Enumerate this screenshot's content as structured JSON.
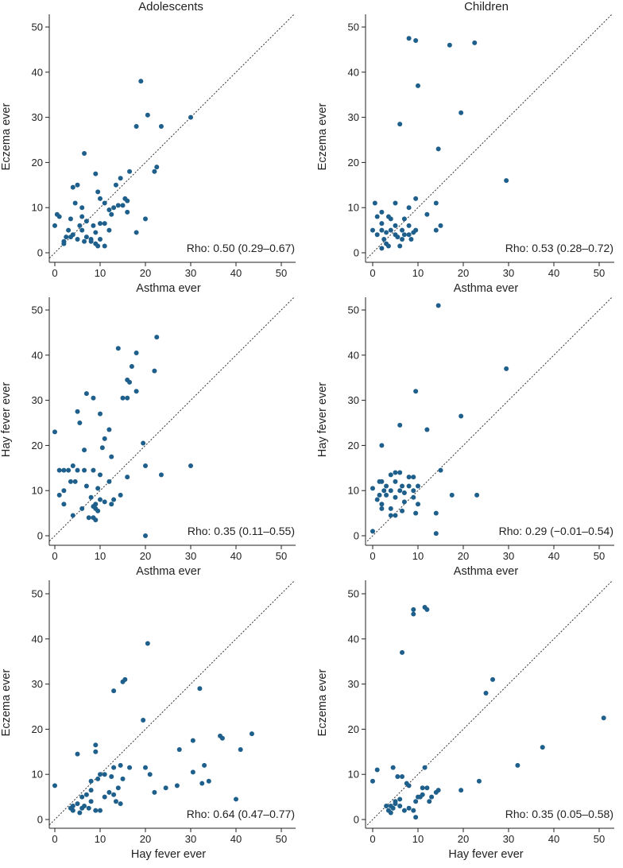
{
  "figure": {
    "colors": {
      "point": "#1f5f8b",
      "axis": "#222222",
      "diagonal": "#333333"
    },
    "column_titles": [
      "Adolescents",
      "Children"
    ]
  },
  "chart_data": [
    {
      "type": "scatter",
      "id": "adolescents-asthma-eczema",
      "column_title": "Adolescents",
      "xlabel": "Asthma ever",
      "ylabel": "Eczema ever",
      "xlim": [
        0,
        50
      ],
      "ylim": [
        0,
        50
      ],
      "xticks": [
        0,
        10,
        20,
        30,
        40,
        50
      ],
      "yticks": [
        0,
        10,
        20,
        30,
        40,
        50
      ],
      "annotation": "Rho: 0.50 (0.29–0.67)",
      "reference_line": "y = x (dotted)",
      "points": [
        [
          19,
          38
        ],
        [
          20.5,
          30.5
        ],
        [
          30,
          30
        ],
        [
          18,
          28
        ],
        [
          23.5,
          28
        ],
        [
          6.5,
          22
        ],
        [
          22,
          18
        ],
        [
          22.5,
          19
        ],
        [
          16.5,
          18
        ],
        [
          9,
          17.5
        ],
        [
          14.5,
          16.5
        ],
        [
          5,
          15
        ],
        [
          13.5,
          15
        ],
        [
          4,
          14.5
        ],
        [
          9.5,
          13.5
        ],
        [
          10,
          12
        ],
        [
          15.5,
          12
        ],
        [
          16,
          11.5
        ],
        [
          11,
          11
        ],
        [
          4.5,
          11
        ],
        [
          6,
          10
        ],
        [
          14,
          10.5
        ],
        [
          15,
          10.5
        ],
        [
          13,
          10
        ],
        [
          16,
          9
        ],
        [
          12,
          9.5
        ],
        [
          0.5,
          8.5
        ],
        [
          3.5,
          7.5
        ],
        [
          1,
          8
        ],
        [
          6,
          8
        ],
        [
          12.5,
          8.5
        ],
        [
          20,
          7.5
        ],
        [
          7,
          7
        ],
        [
          10,
          6.5
        ],
        [
          11,
          6.5
        ],
        [
          5.5,
          6
        ],
        [
          8.5,
          6
        ],
        [
          0,
          6
        ],
        [
          3,
          5
        ],
        [
          6,
          5
        ],
        [
          12,
          5
        ],
        [
          4,
          4
        ],
        [
          9,
          4.5
        ],
        [
          18,
          4.5
        ],
        [
          2.5,
          3.5
        ],
        [
          3.5,
          3.5
        ],
        [
          5,
          3
        ],
        [
          7,
          3.5
        ],
        [
          8,
          3
        ],
        [
          10,
          3
        ],
        [
          6.5,
          2.5
        ],
        [
          8,
          2.5
        ],
        [
          9,
          2
        ],
        [
          9.5,
          1.5
        ],
        [
          11,
          1.5
        ],
        [
          2,
          2
        ],
        [
          2,
          2.5
        ]
      ]
    },
    {
      "type": "scatter",
      "id": "children-asthma-eczema",
      "column_title": "Children",
      "xlabel": "Asthma ever",
      "ylabel": "Eczema ever",
      "xlim": [
        0,
        50
      ],
      "ylim": [
        0,
        50
      ],
      "xticks": [
        0,
        10,
        20,
        30,
        40,
        50
      ],
      "yticks": [
        0,
        10,
        20,
        30,
        40,
        50
      ],
      "annotation": "Rho: 0.53 (0.28–0.72)",
      "reference_line": "y = x (dotted)",
      "points": [
        [
          8,
          47.5
        ],
        [
          9.5,
          47
        ],
        [
          17,
          46
        ],
        [
          22.5,
          46.5
        ],
        [
          10,
          37
        ],
        [
          19.5,
          31
        ],
        [
          6,
          28.5
        ],
        [
          14.5,
          23
        ],
        [
          29.5,
          16
        ],
        [
          9.5,
          12
        ],
        [
          0.5,
          11
        ],
        [
          5,
          11
        ],
        [
          14,
          11
        ],
        [
          8,
          10
        ],
        [
          2,
          9
        ],
        [
          1,
          8
        ],
        [
          3.5,
          8
        ],
        [
          4,
          7.5
        ],
        [
          7,
          7.5
        ],
        [
          12,
          8.5
        ],
        [
          15,
          6
        ],
        [
          2,
          6.5
        ],
        [
          5,
          6
        ],
        [
          8,
          6
        ],
        [
          0,
          5
        ],
        [
          2,
          5
        ],
        [
          4,
          5
        ],
        [
          6.5,
          5
        ],
        [
          9.5,
          5
        ],
        [
          14,
          5
        ],
        [
          1,
          4
        ],
        [
          3,
          4.5
        ],
        [
          5,
          4
        ],
        [
          7,
          4
        ],
        [
          8,
          4
        ],
        [
          9,
          4.5
        ],
        [
          5.5,
          3.5
        ],
        [
          6.5,
          3
        ],
        [
          8.5,
          3
        ],
        [
          2.5,
          3
        ],
        [
          3,
          2
        ],
        [
          6,
          1.5
        ],
        [
          2,
          1
        ],
        [
          3.5,
          1.5
        ]
      ]
    },
    {
      "type": "scatter",
      "id": "adolescents-asthma-hayfever",
      "xlabel": "Asthma ever",
      "ylabel": "Hay fever ever",
      "xlim": [
        0,
        50
      ],
      "ylim": [
        0,
        50
      ],
      "xticks": [
        0,
        10,
        20,
        30,
        40,
        50
      ],
      "yticks": [
        0,
        10,
        20,
        30,
        40,
        50
      ],
      "annotation": "Rho: 0.35 (0.11–0.55)",
      "reference_line": "y = x (dotted)",
      "points": [
        [
          22.5,
          44
        ],
        [
          14,
          41.5
        ],
        [
          18,
          40.5
        ],
        [
          17,
          37.5
        ],
        [
          22,
          36.5
        ],
        [
          16,
          34.5
        ],
        [
          16.5,
          34
        ],
        [
          18,
          32
        ],
        [
          7,
          31.5
        ],
        [
          8.5,
          30.5
        ],
        [
          15,
          30.5
        ],
        [
          16,
          30.5
        ],
        [
          5,
          27.5
        ],
        [
          10,
          27
        ],
        [
          5.5,
          25
        ],
        [
          12,
          23.5
        ],
        [
          0,
          23
        ],
        [
          11,
          21.5
        ],
        [
          19.5,
          20.5
        ],
        [
          10.5,
          19.5
        ],
        [
          6.5,
          19
        ],
        [
          12.5,
          17.5
        ],
        [
          20,
          15.5
        ],
        [
          30,
          15.5
        ],
        [
          4,
          15.5
        ],
        [
          1,
          14.5
        ],
        [
          2,
          14.5
        ],
        [
          3,
          14.5
        ],
        [
          5,
          14.5
        ],
        [
          6.5,
          14.5
        ],
        [
          8.5,
          14.5
        ],
        [
          10,
          13.5
        ],
        [
          23.5,
          13.5
        ],
        [
          16,
          13
        ],
        [
          3.5,
          12
        ],
        [
          4.5,
          12
        ],
        [
          12,
          12
        ],
        [
          7,
          11
        ],
        [
          9.5,
          10.5
        ],
        [
          2,
          10
        ],
        [
          1,
          9
        ],
        [
          14.5,
          9
        ],
        [
          8,
          8.5
        ],
        [
          10,
          8
        ],
        [
          13,
          8
        ],
        [
          2,
          7
        ],
        [
          9,
          7
        ],
        [
          11,
          7.5
        ],
        [
          8.5,
          6.5
        ],
        [
          6,
          6
        ],
        [
          9,
          6
        ],
        [
          9.5,
          5.5
        ],
        [
          12.5,
          7
        ],
        [
          4,
          4.5
        ],
        [
          7.5,
          4
        ],
        [
          8.5,
          4
        ],
        [
          9,
          3.5
        ],
        [
          20,
          0
        ]
      ]
    },
    {
      "type": "scatter",
      "id": "children-asthma-hayfever",
      "xlabel": "Asthma ever",
      "ylabel": "Hay fever ever",
      "xlim": [
        0,
        50
      ],
      "ylim": [
        0,
        50
      ],
      "xticks": [
        0,
        10,
        20,
        30,
        40,
        50
      ],
      "yticks": [
        0,
        10,
        20,
        30,
        40,
        50
      ],
      "annotation": "Rho: 0.29 (−0.01–0.54)",
      "reference_line": "y = x (dotted)",
      "points": [
        [
          14.5,
          51
        ],
        [
          29.5,
          37
        ],
        [
          9.5,
          32
        ],
        [
          19.5,
          26.5
        ],
        [
          6,
          24.5
        ],
        [
          12,
          23.5
        ],
        [
          2,
          20
        ],
        [
          15,
          14.5
        ],
        [
          5,
          14
        ],
        [
          6,
          14
        ],
        [
          4,
          13.5
        ],
        [
          8,
          13
        ],
        [
          9,
          13
        ],
        [
          2,
          12
        ],
        [
          5,
          12
        ],
        [
          1.5,
          12
        ],
        [
          3,
          11
        ],
        [
          6.5,
          11
        ],
        [
          10,
          11
        ],
        [
          8,
          11
        ],
        [
          0,
          10.5
        ],
        [
          2.5,
          10
        ],
        [
          4,
          10
        ],
        [
          6,
          10
        ],
        [
          9,
          10
        ],
        [
          1.5,
          9
        ],
        [
          3,
          9
        ],
        [
          7,
          9.5
        ],
        [
          17.5,
          9
        ],
        [
          23,
          9
        ],
        [
          1,
          8
        ],
        [
          5,
          8.5
        ],
        [
          9,
          8.5
        ],
        [
          2,
          7
        ],
        [
          7,
          7.5
        ],
        [
          10,
          7
        ],
        [
          2,
          6
        ],
        [
          4,
          6
        ],
        [
          6.5,
          5.5
        ],
        [
          4,
          4.5
        ],
        [
          5,
          4.5
        ],
        [
          9.5,
          5
        ],
        [
          14,
          5
        ],
        [
          0,
          1
        ],
        [
          14,
          0.5
        ]
      ]
    },
    {
      "type": "scatter",
      "id": "adolescents-hayfever-eczema",
      "xlabel": "Hay fever ever",
      "ylabel": "Eczema ever",
      "xlim": [
        0,
        50
      ],
      "ylim": [
        0,
        50
      ],
      "xticks": [
        0,
        10,
        20,
        30,
        40,
        50
      ],
      "yticks": [
        0,
        10,
        20,
        30,
        40,
        50
      ],
      "annotation": "Rho: 0.64 (0.47–0.77)",
      "reference_line": "y = x (dotted)",
      "points": [
        [
          20.5,
          39
        ],
        [
          15.5,
          31
        ],
        [
          15,
          30.5
        ],
        [
          32,
          29
        ],
        [
          13,
          28.5
        ],
        [
          19.5,
          22
        ],
        [
          30.5,
          17.5
        ],
        [
          36.5,
          18.5
        ],
        [
          37,
          18
        ],
        [
          43.5,
          19
        ],
        [
          9,
          16.5
        ],
        [
          9,
          15
        ],
        [
          5,
          14.5
        ],
        [
          27.5,
          15.5
        ],
        [
          41,
          15.5
        ],
        [
          16.5,
          11.5
        ],
        [
          20,
          11.5
        ],
        [
          14.5,
          12
        ],
        [
          13,
          11.5
        ],
        [
          33,
          12
        ],
        [
          21,
          10
        ],
        [
          10,
          10
        ],
        [
          11,
          10
        ],
        [
          12.5,
          9.5
        ],
        [
          30.5,
          10.5
        ],
        [
          9.5,
          9
        ],
        [
          15,
          9
        ],
        [
          32.5,
          8
        ],
        [
          34,
          8.5
        ],
        [
          8,
          8.5
        ],
        [
          27,
          7.5
        ],
        [
          24.5,
          7
        ],
        [
          22,
          6
        ],
        [
          14,
          7
        ],
        [
          12,
          6
        ],
        [
          13,
          5.5
        ],
        [
          7,
          5.5
        ],
        [
          8,
          6.5
        ],
        [
          0,
          7.5
        ],
        [
          11,
          5
        ],
        [
          6,
          5
        ],
        [
          4,
          3
        ],
        [
          5,
          3.5
        ],
        [
          6.5,
          3
        ],
        [
          7.5,
          2.5
        ],
        [
          9,
          2
        ],
        [
          4,
          2
        ],
        [
          5.5,
          1.5
        ],
        [
          6,
          2.5
        ],
        [
          10,
          2
        ],
        [
          14.5,
          3.5
        ],
        [
          13.5,
          4
        ],
        [
          3.5,
          2.5
        ],
        [
          8,
          4
        ],
        [
          40,
          4.5
        ]
      ]
    },
    {
      "type": "scatter",
      "id": "children-hayfever-eczema",
      "xlabel": "Hay fever ever",
      "ylabel": "Eczema ever",
      "xlim": [
        0,
        50
      ],
      "ylim": [
        0,
        50
      ],
      "xticks": [
        0,
        10,
        20,
        30,
        40,
        50
      ],
      "yticks": [
        0,
        10,
        20,
        30,
        40,
        50
      ],
      "annotation": "Rho: 0.35 (0.05–0.58)",
      "reference_line": "y = x (dotted)",
      "points": [
        [
          11.5,
          47
        ],
        [
          12,
          46.5
        ],
        [
          9,
          46.5
        ],
        [
          9,
          45.5
        ],
        [
          6.5,
          37
        ],
        [
          26.5,
          31
        ],
        [
          25,
          28
        ],
        [
          51,
          22.5
        ],
        [
          37.5,
          16
        ],
        [
          32,
          12
        ],
        [
          1,
          11
        ],
        [
          4.5,
          11.5
        ],
        [
          11.5,
          11.5
        ],
        [
          5.5,
          9.5
        ],
        [
          6.5,
          9.5
        ],
        [
          7.5,
          8
        ],
        [
          0,
          8.5
        ],
        [
          8,
          7.5
        ],
        [
          12,
          7
        ],
        [
          11,
          7
        ],
        [
          23.5,
          8.5
        ],
        [
          19.5,
          6.5
        ],
        [
          14,
          6
        ],
        [
          14.5,
          6.5
        ],
        [
          10,
          5
        ],
        [
          10.5,
          5
        ],
        [
          11,
          5.5
        ],
        [
          13,
          5
        ],
        [
          5,
          4
        ],
        [
          6,
          4.5
        ],
        [
          9.5,
          4
        ],
        [
          12.5,
          4
        ],
        [
          3,
          3
        ],
        [
          4,
          3
        ],
        [
          5,
          3.5
        ],
        [
          6,
          3
        ],
        [
          3.5,
          2
        ],
        [
          4.5,
          2.5
        ],
        [
          7,
          2
        ],
        [
          9,
          2
        ],
        [
          8,
          2.5
        ],
        [
          4,
          1.5
        ],
        [
          9.5,
          0.5
        ]
      ]
    }
  ]
}
